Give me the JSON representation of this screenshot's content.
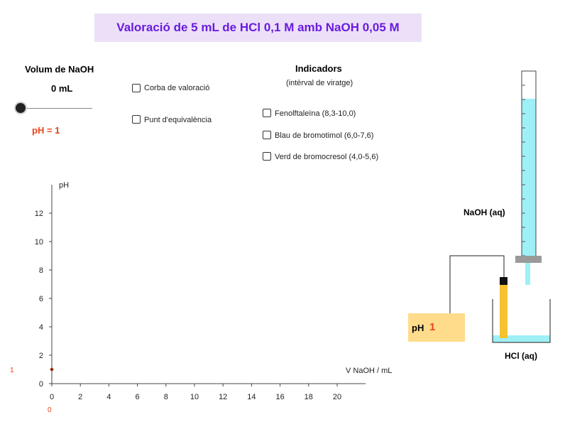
{
  "title": "Valoració de 5 mL de HCl 0,1 M amb NaOH 0,05 M",
  "volume": {
    "label": "Volum de NaOH",
    "value": "0 mL",
    "slider_fraction": 0
  },
  "ph_display": "pH = 1",
  "checkboxes": {
    "curve": {
      "label": "Corba de valoració",
      "checked": false
    },
    "equivalence": {
      "label": "Punt d'equivalència",
      "checked": false
    }
  },
  "indicators": {
    "heading": "Indicadors",
    "subheading": "(intèrval de viratge)",
    "items": [
      {
        "label": "Fenolftaleïna (8,3-10,0)",
        "checked": false
      },
      {
        "label": "Blau de bromotimol (6,0-7,6)",
        "checked": false
      },
      {
        "label": "Verd de bromocresol (4,0-5,6)",
        "checked": false
      }
    ]
  },
  "chart_data": {
    "type": "scatter",
    "xlabel": "V NaOH / mL",
    "ylabel": "pH",
    "xlim": [
      0,
      22
    ],
    "ylim": [
      0,
      14
    ],
    "x_ticks": [
      "0",
      "2",
      "4",
      "6",
      "8",
      "10",
      "12",
      "14",
      "16",
      "18",
      "20"
    ],
    "y_ticks": [
      "0",
      "2",
      "4",
      "6",
      "8",
      "10",
      "12"
    ],
    "points": [
      {
        "x": 0,
        "y": 1
      }
    ],
    "point_x_label": "0",
    "point_y_label": "1"
  },
  "apparatus": {
    "burette_label": "NaOH (aq)",
    "beaker_label": "HCl (aq)",
    "meter_label": "pH",
    "meter_value": "1"
  },
  "colors": {
    "title": "#6a1be0",
    "title_bg": "#ece0f8",
    "ph_text": "#e8431c",
    "naoh_liquid": "#9ef0f6",
    "electrode": "#f5c232",
    "meter_bg": "#ffdc8c",
    "point": "#8b2000"
  }
}
